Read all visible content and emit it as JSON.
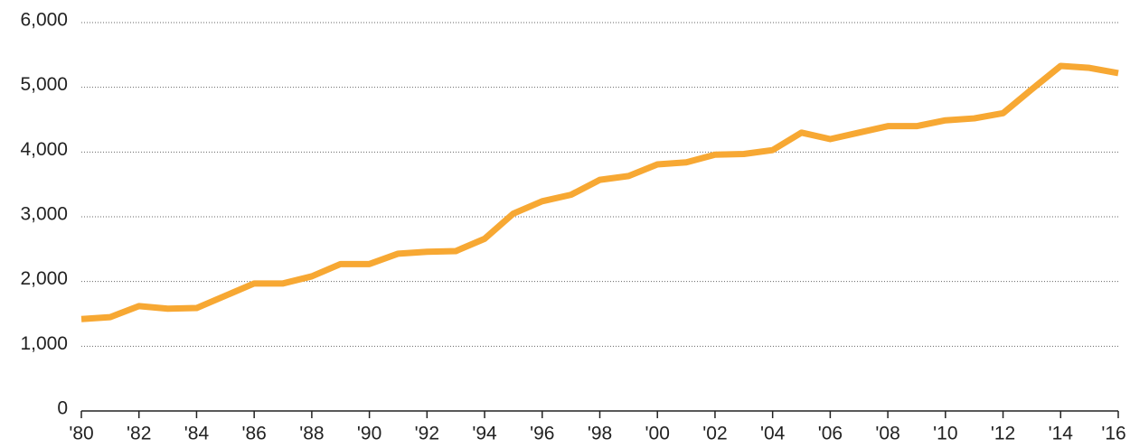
{
  "chart_data": {
    "type": "line",
    "categories": [
      "'80",
      null,
      "'82",
      null,
      "'84",
      null,
      "'86",
      null,
      "'88",
      null,
      "'90",
      null,
      "'92",
      null,
      "'94",
      null,
      "'96",
      null,
      "'98",
      null,
      "'00",
      null,
      "'02",
      null,
      "'04",
      null,
      "'06",
      null,
      "'08",
      null,
      "'10",
      null,
      "'12",
      null,
      "'14",
      null,
      "'16"
    ],
    "values": [
      1420,
      1450,
      1620,
      1580,
      1590,
      1780,
      1970,
      1970,
      2080,
      2270,
      2270,
      2430,
      2460,
      2470,
      2660,
      3050,
      3240,
      3340,
      3570,
      3630,
      3810,
      3840,
      3960,
      3970,
      4030,
      4300,
      4200,
      4300,
      4400,
      4400,
      4490,
      4520,
      4600,
      4970,
      5330,
      5300,
      5220
    ],
    "color": "#f7a833",
    "ylim": [
      0,
      6000
    ],
    "yticks": [
      0,
      {
        "value": 1000,
        "label": "1,000"
      },
      {
        "value": 2000,
        "label": "2,000"
      },
      {
        "value": 3000,
        "label": "3,000"
      },
      {
        "value": 4000,
        "label": "4,000"
      },
      {
        "value": 5000,
        "label": "5,000"
      },
      {
        "value": 6000,
        "label": "6,000"
      }
    ],
    "grid": true
  }
}
